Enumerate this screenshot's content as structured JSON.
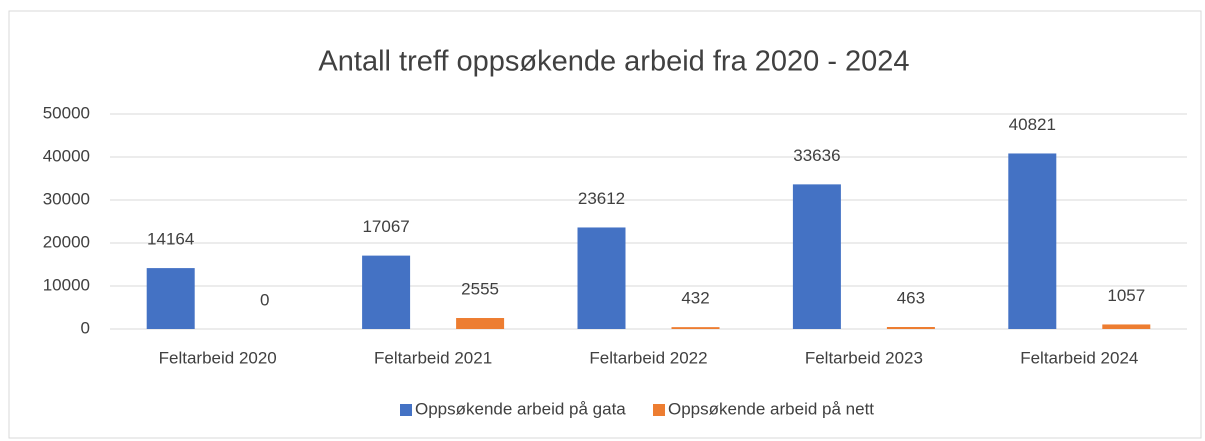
{
  "chart_data": {
    "type": "bar",
    "title": "Antall treff oppsøkende arbeid fra 2020 - 2024",
    "categories": [
      "Feltarbeid 2020",
      "Feltarbeid 2021",
      "Feltarbeid 2022",
      "Feltarbeid 2023",
      "Feltarbeid 2024"
    ],
    "series": [
      {
        "name": "Oppsøkende arbeid på gata",
        "color": "#4472c4",
        "values": [
          14164,
          17067,
          23612,
          33636,
          40821
        ]
      },
      {
        "name": "Oppsøkende arbeid på nett",
        "color": "#ed7d31",
        "values": [
          0,
          2555,
          432,
          463,
          1057
        ]
      }
    ],
    "ylim": [
      0,
      50000
    ],
    "yticks": [
      0,
      10000,
      20000,
      30000,
      40000,
      50000
    ],
    "grid": true,
    "legend": "bottom"
  }
}
